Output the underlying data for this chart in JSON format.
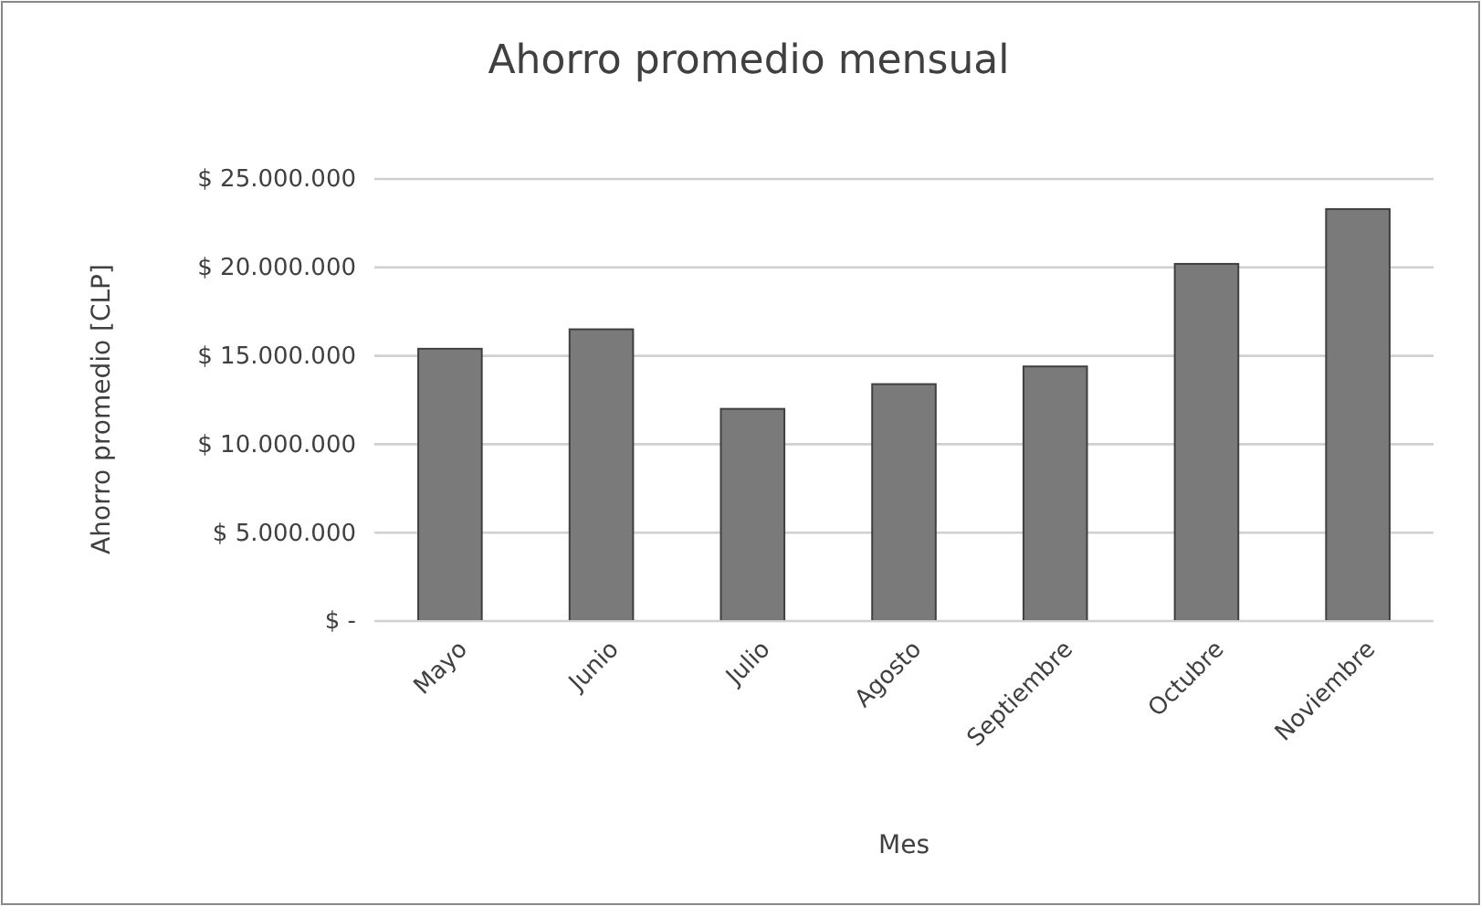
{
  "chart_data": {
    "type": "bar",
    "title": "Ahorro promedio mensual",
    "xlabel": "Mes",
    "ylabel": "Ahorro promedio [CLP]",
    "categories": [
      "Mayo",
      "Junio",
      "Julio",
      "Agosto",
      "Septiembre",
      "Octubre",
      "Noviembre"
    ],
    "values": [
      15400000,
      16500000,
      12000000,
      13400000,
      14400000,
      20200000,
      23300000
    ],
    "color": "#7a7a7a",
    "ylim": [
      0,
      25000000
    ],
    "yticks": [
      {
        "value": 0,
        "label": "$ -"
      },
      {
        "value": 5000000,
        "label": "$ 5.000.000"
      },
      {
        "value": 10000000,
        "label": "$ 10.000.000"
      },
      {
        "value": 15000000,
        "label": "$ 15.000.000"
      },
      {
        "value": 20000000,
        "label": "$ 20.000.000"
      },
      {
        "value": 25000000,
        "label": "$ 25.000.000"
      }
    ],
    "grid": "y"
  }
}
